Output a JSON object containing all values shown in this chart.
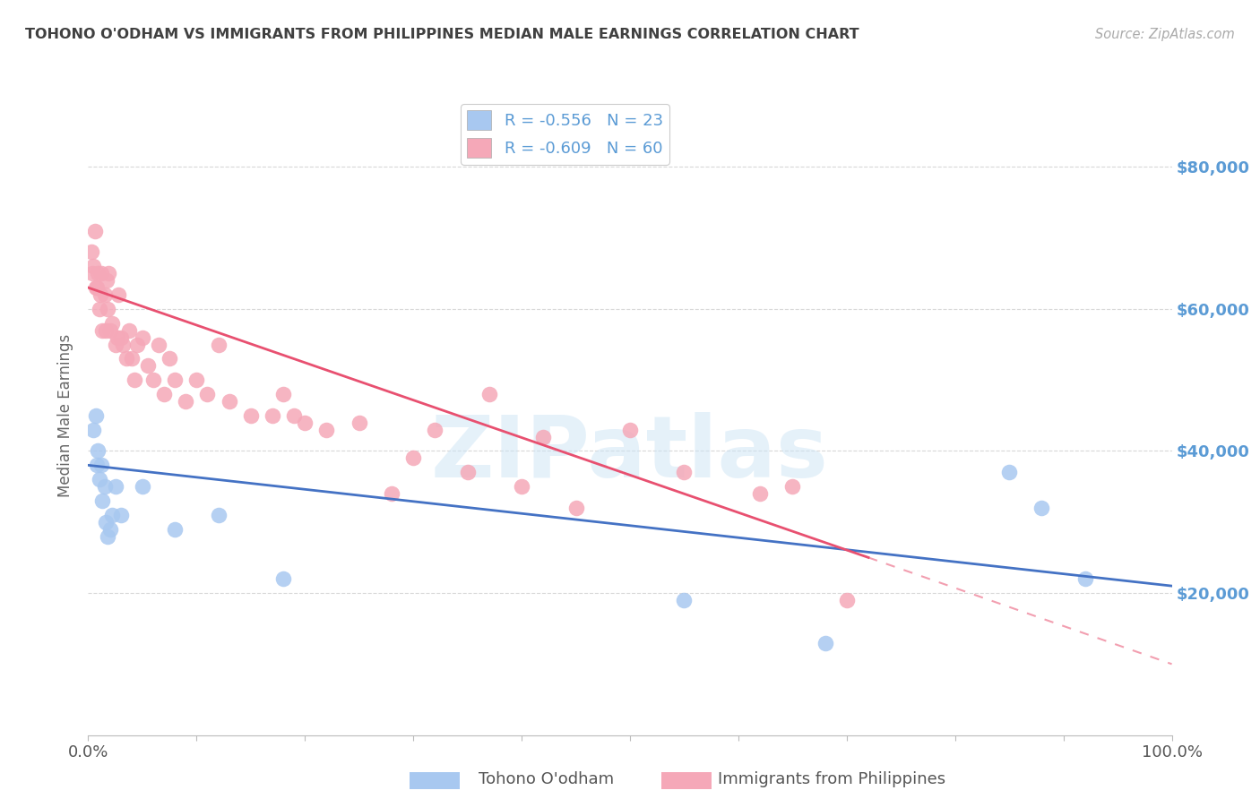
{
  "title": "TOHONO O'ODHAM VS IMMIGRANTS FROM PHILIPPINES MEDIAN MALE EARNINGS CORRELATION CHART",
  "source": "Source: ZipAtlas.com",
  "ylabel": "Median Male Earnings",
  "watermark": "ZIPatlas",
  "series1_label": "Tohono O'odham",
  "series2_label": "Immigrants from Philippines",
  "series1_R": -0.556,
  "series1_N": 23,
  "series2_R": -0.609,
  "series2_N": 60,
  "series1_color": "#a8c8f0",
  "series2_color": "#f5a8b8",
  "line1_color": "#4472c4",
  "line2_color": "#e85070",
  "background_color": "#ffffff",
  "grid_color": "#d8d8d8",
  "title_color": "#404040",
  "right_axis_color": "#5b9bd5",
  "ytick_labels": [
    "$80,000",
    "$60,000",
    "$40,000",
    "$20,000"
  ],
  "ytick_values": [
    80000,
    60000,
    40000,
    20000
  ],
  "ylim": [
    0,
    90000
  ],
  "xlim": [
    0.0,
    1.0
  ],
  "line1_x0": 0.0,
  "line1_y0": 38000,
  "line1_x1": 1.0,
  "line1_y1": 21000,
  "line2_x0": 0.0,
  "line2_y0": 63000,
  "line2_x1": 0.72,
  "line2_y1": 25000,
  "line2_dash_x1": 1.0,
  "line2_dash_y1": 10000,
  "series1_x": [
    0.005,
    0.007,
    0.008,
    0.009,
    0.01,
    0.012,
    0.013,
    0.015,
    0.016,
    0.018,
    0.02,
    0.022,
    0.025,
    0.03,
    0.05,
    0.08,
    0.12,
    0.18,
    0.55,
    0.68,
    0.85,
    0.88,
    0.92
  ],
  "series1_y": [
    43000,
    45000,
    38000,
    40000,
    36000,
    38000,
    33000,
    35000,
    30000,
    28000,
    29000,
    31000,
    35000,
    31000,
    35000,
    29000,
    31000,
    22000,
    19000,
    13000,
    37000,
    32000,
    22000
  ],
  "series2_x": [
    0.003,
    0.004,
    0.005,
    0.006,
    0.007,
    0.008,
    0.009,
    0.01,
    0.011,
    0.012,
    0.013,
    0.015,
    0.016,
    0.017,
    0.018,
    0.019,
    0.02,
    0.022,
    0.025,
    0.027,
    0.028,
    0.03,
    0.032,
    0.035,
    0.038,
    0.04,
    0.043,
    0.045,
    0.05,
    0.055,
    0.06,
    0.065,
    0.07,
    0.075,
    0.08,
    0.09,
    0.1,
    0.11,
    0.12,
    0.13,
    0.15,
    0.17,
    0.18,
    0.19,
    0.2,
    0.22,
    0.25,
    0.28,
    0.3,
    0.32,
    0.35,
    0.37,
    0.4,
    0.42,
    0.45,
    0.5,
    0.55,
    0.62,
    0.65,
    0.7
  ],
  "series2_y": [
    68000,
    65000,
    66000,
    71000,
    63000,
    63000,
    65000,
    60000,
    62000,
    65000,
    57000,
    62000,
    57000,
    64000,
    60000,
    65000,
    57000,
    58000,
    55000,
    56000,
    62000,
    56000,
    55000,
    53000,
    57000,
    53000,
    50000,
    55000,
    56000,
    52000,
    50000,
    55000,
    48000,
    53000,
    50000,
    47000,
    50000,
    48000,
    55000,
    47000,
    45000,
    45000,
    48000,
    45000,
    44000,
    43000,
    44000,
    34000,
    39000,
    43000,
    37000,
    48000,
    35000,
    42000,
    32000,
    43000,
    37000,
    34000,
    35000,
    19000
  ]
}
